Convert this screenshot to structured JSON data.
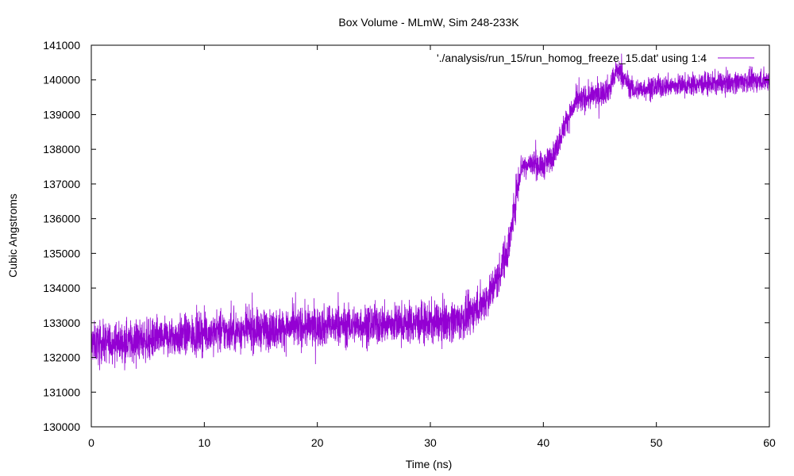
{
  "chart_data": {
    "type": "line",
    "title": "Box Volume - MLmW, Sim 248-233K",
    "xlabel": "Time (ns)",
    "ylabel": "Cubic Angstroms",
    "xlim": [
      0,
      60
    ],
    "ylim": [
      130000,
      141000
    ],
    "x_ticks": [
      "0",
      "10",
      "20",
      "30",
      "40",
      "50",
      "60"
    ],
    "y_ticks": [
      "130000",
      "131000",
      "132000",
      "133000",
      "134000",
      "135000",
      "136000",
      "137000",
      "138000",
      "139000",
      "140000",
      "141000"
    ],
    "grid": false,
    "legend_position": "top-right",
    "series": [
      {
        "name": "'./analysis/run_15/run_homog_freeze_15.dat' using 1:4",
        "color": "#9400d3",
        "x": [
          0,
          5,
          10,
          15,
          20,
          25,
          30,
          33,
          35,
          36,
          37,
          37.5,
          38,
          39,
          40,
          41,
          42,
          43,
          44,
          45,
          46,
          46.5,
          47,
          48,
          50,
          55,
          60
        ],
        "y": [
          132400,
          132500,
          132700,
          132800,
          132900,
          132950,
          133000,
          133100,
          133700,
          134300,
          135300,
          136500,
          137500,
          137600,
          137500,
          137900,
          138800,
          139400,
          139500,
          139600,
          139800,
          140300,
          140100,
          139700,
          139800,
          139900,
          140000
        ],
        "noise_amplitude": 550
      }
    ]
  }
}
